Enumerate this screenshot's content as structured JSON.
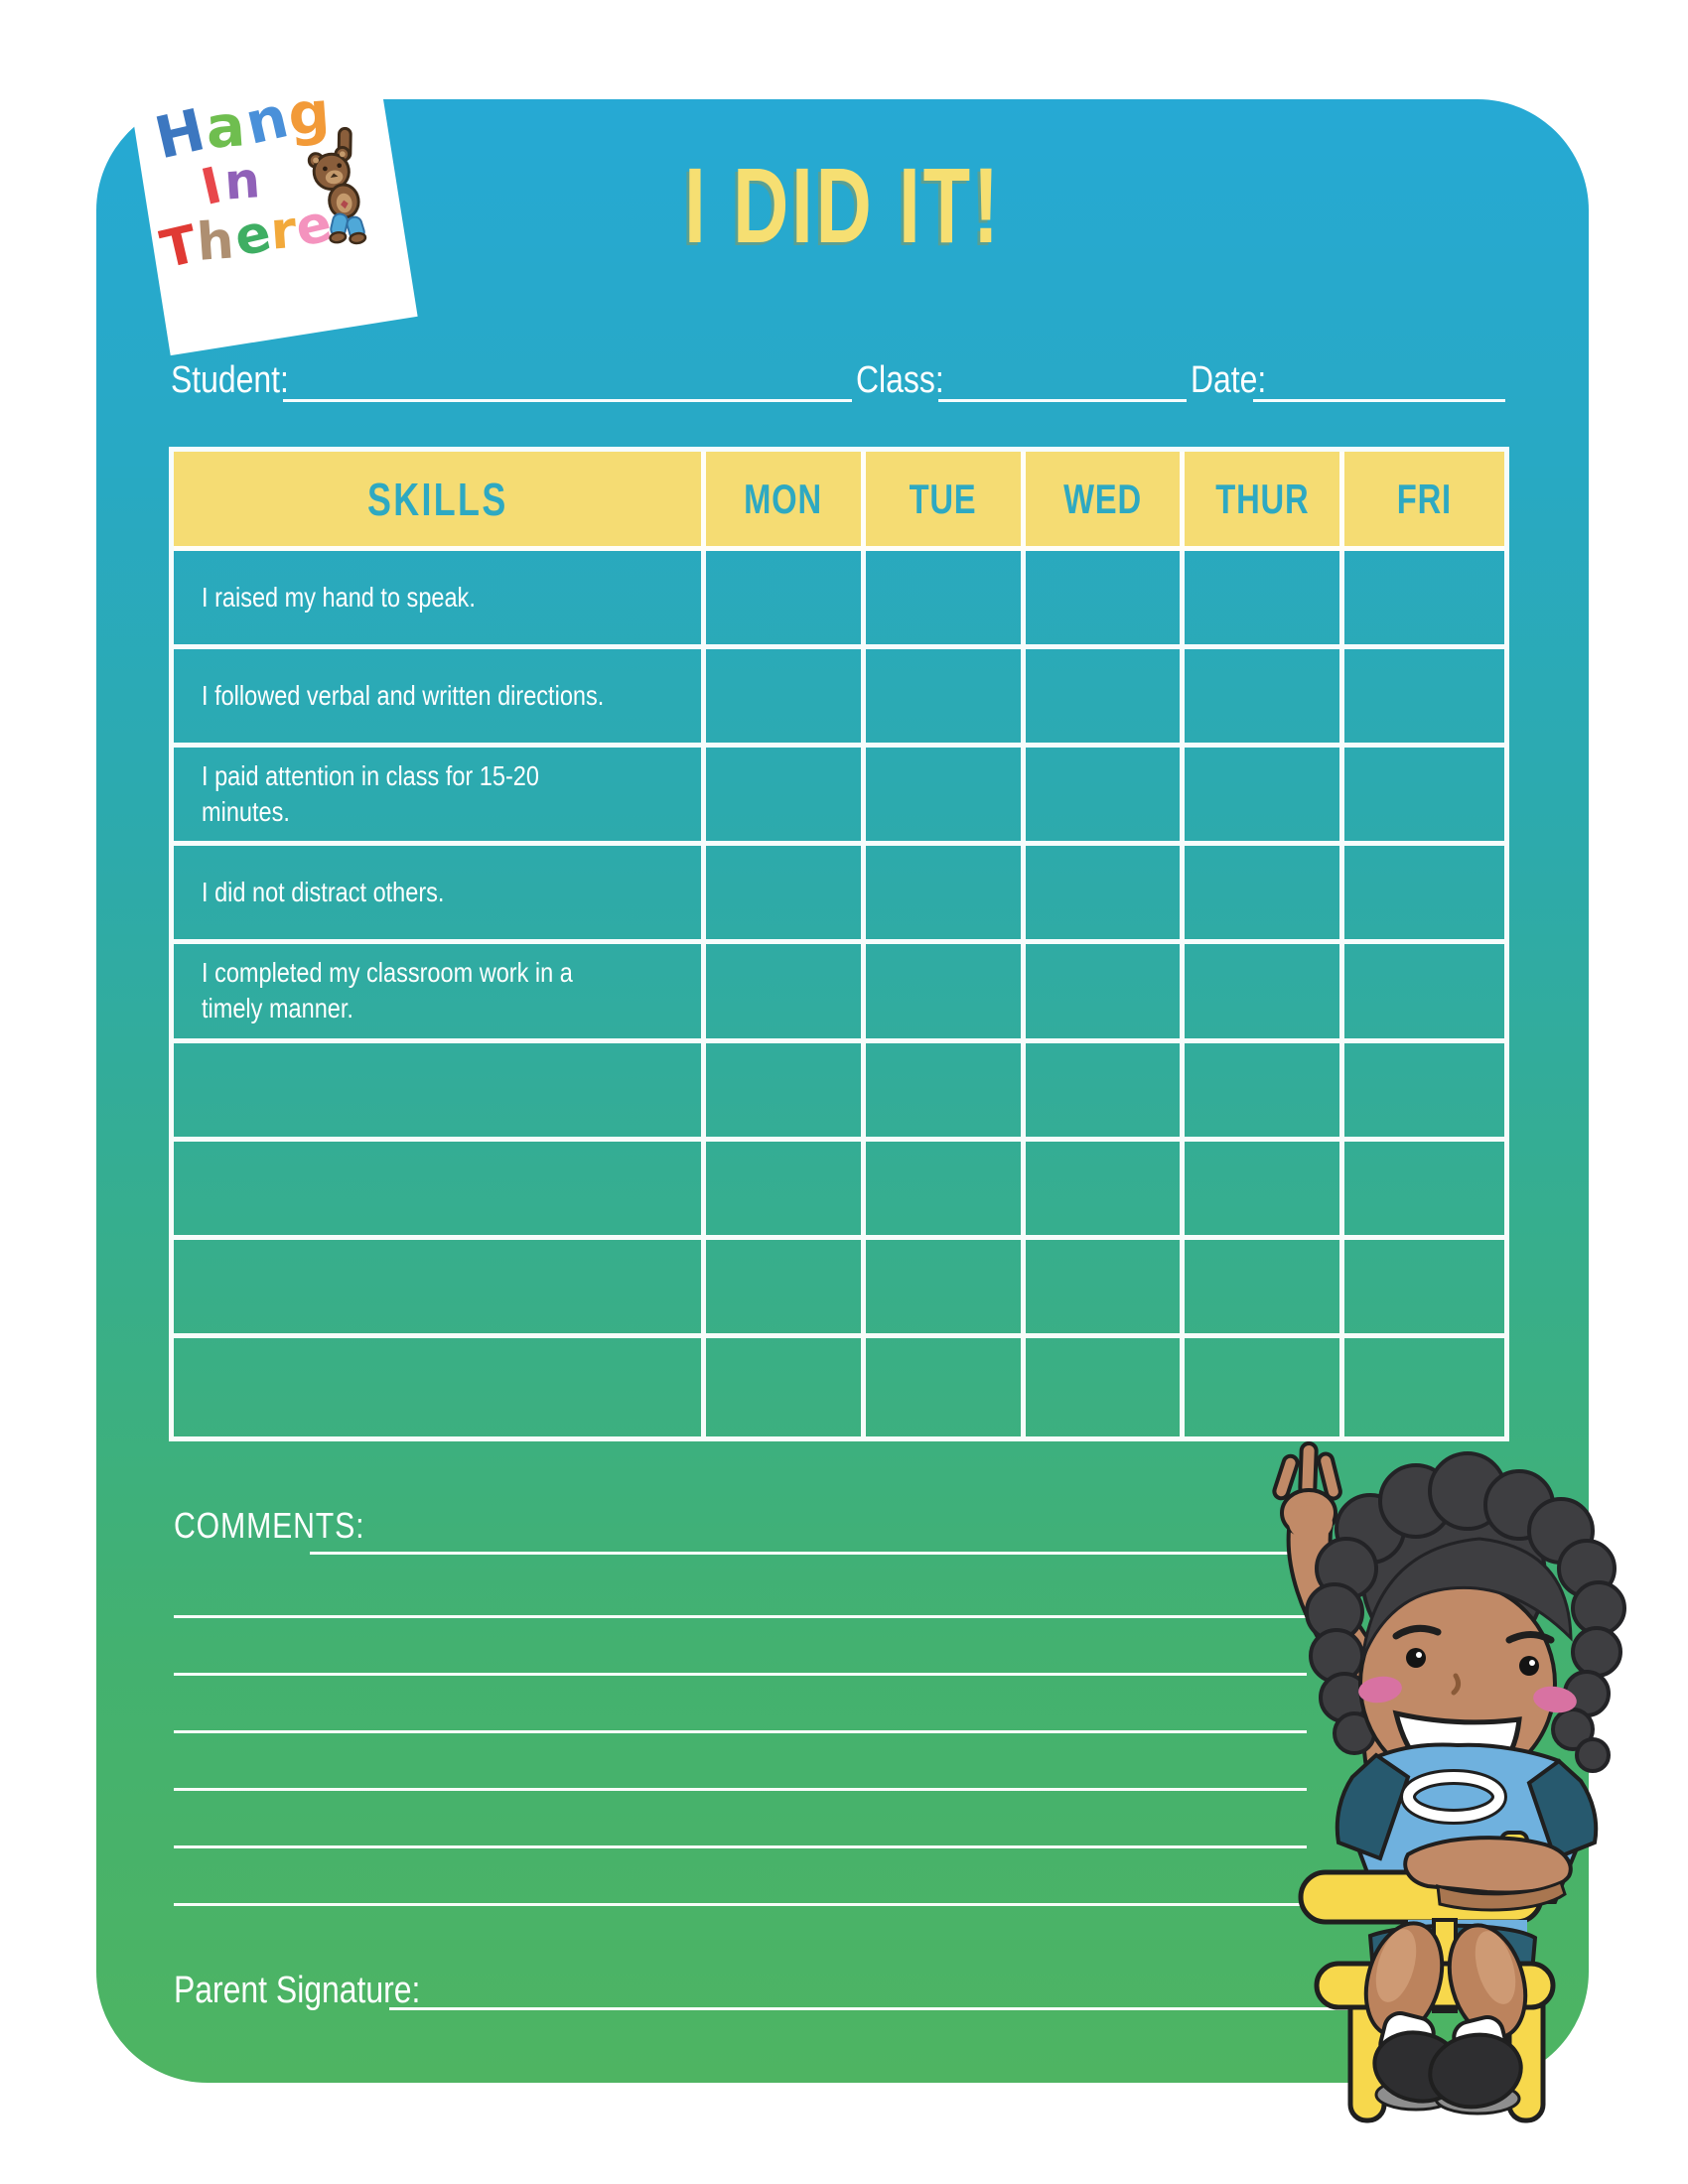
{
  "title": "I DID IT!",
  "logo": {
    "lines": [
      {
        "letters": [
          {
            "ch": "H",
            "color": "#3c77c0"
          },
          {
            "ch": "a",
            "color": "#6fbe4f"
          },
          {
            "ch": "n",
            "color": "#4a90d9"
          },
          {
            "ch": "g",
            "color": "#f29a38"
          }
        ]
      },
      {
        "letters": [
          {
            "ch": "I",
            "color": "#e8474b"
          },
          {
            "ch": "n",
            "color": "#9061b8"
          }
        ]
      },
      {
        "letters": [
          {
            "ch": "T",
            "color": "#e03a34"
          },
          {
            "ch": "h",
            "color": "#ae8f71"
          },
          {
            "ch": "e",
            "color": "#3fae63"
          },
          {
            "ch": "r",
            "color": "#f2a93b"
          },
          {
            "ch": "e",
            "color": "#f493be"
          }
        ]
      }
    ],
    "bear_icon": "teddy-bear-hanging"
  },
  "fields": {
    "student_label": "Student:",
    "student_value": "",
    "class_label": "Class:",
    "class_value": "",
    "date_label": "Date:",
    "date_value": ""
  },
  "table": {
    "headers": [
      "SKILLS",
      "MON",
      "TUE",
      "WED",
      "THUR",
      "FRI"
    ],
    "rows": [
      {
        "skill": "I raised my hand to speak.",
        "cells": [
          "",
          "",
          "",
          "",
          ""
        ]
      },
      {
        "skill": "I followed verbal and written directions.",
        "cells": [
          "",
          "",
          "",
          "",
          ""
        ]
      },
      {
        "skill": "I paid attention in class for 15-20 minutes.",
        "cells": [
          "",
          "",
          "",
          "",
          ""
        ]
      },
      {
        "skill": "I did not distract others.",
        "cells": [
          "",
          "",
          "",
          "",
          ""
        ]
      },
      {
        "skill": "I completed my classroom work in a timely manner.",
        "cells": [
          "",
          "",
          "",
          "",
          ""
        ]
      },
      {
        "skill": "",
        "cells": [
          "",
          "",
          "",
          "",
          ""
        ]
      },
      {
        "skill": "",
        "cells": [
          "",
          "",
          "",
          "",
          ""
        ]
      },
      {
        "skill": "",
        "cells": [
          "",
          "",
          "",
          "",
          ""
        ]
      },
      {
        "skill": "",
        "cells": [
          "",
          "",
          "",
          "",
          ""
        ]
      }
    ]
  },
  "comments": {
    "label": "COMMENTS:",
    "line_count": 7
  },
  "signature": {
    "label": "Parent Signature:"
  },
  "illustration": {
    "name": "boy-raising-hand-on-chair"
  },
  "colors": {
    "card_gradient_top": "#26a9d4",
    "card_gradient_bottom": "#4eb462",
    "title_yellow": "#f6df72",
    "table_header_bg": "#f5dc73",
    "table_header_text": "#2ea9c2",
    "grid_line": "#ffffff",
    "body_text": "#ffffff",
    "chair_yellow": "#f7d84c"
  }
}
